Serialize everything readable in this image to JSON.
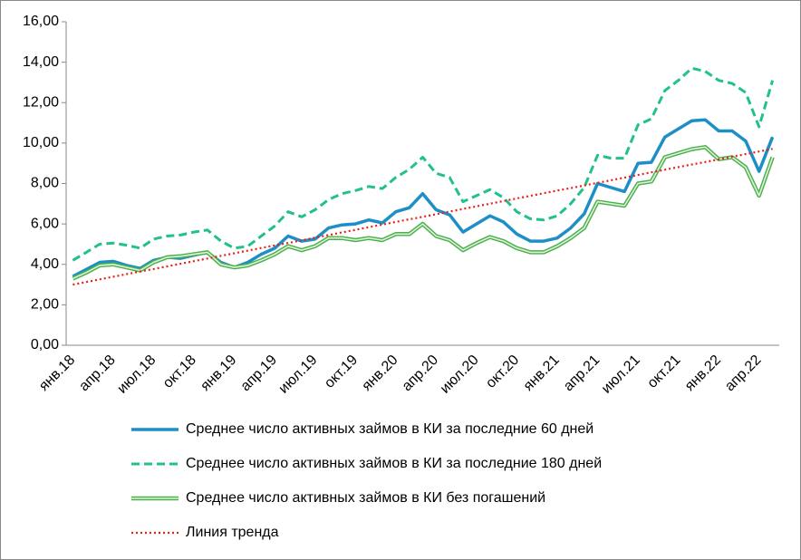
{
  "chart_data": {
    "type": "line",
    "categories": [
      "янв.18",
      null,
      null,
      "апр.18",
      null,
      null,
      "июл.18",
      null,
      null,
      "окт.18",
      null,
      null,
      "янв.19",
      null,
      null,
      "апр.19",
      null,
      null,
      "июл.19",
      null,
      null,
      "окт.19",
      null,
      null,
      "янв.20",
      null,
      null,
      "апр.20",
      null,
      null,
      "июл.20",
      null,
      null,
      "окт.20",
      null,
      null,
      "янв.21",
      null,
      null,
      "апр.21",
      null,
      null,
      "июл.21",
      null,
      null,
      "окт.21",
      null,
      null,
      "янв.22",
      null,
      null,
      "апр.22",
      null
    ],
    "series": [
      {
        "name": "Среднее число активных займов в КИ за последние 60 дней",
        "color": "#1e8fc6",
        "style": "solid",
        "values": [
          3.4,
          3.75,
          4.1,
          4.15,
          3.95,
          3.8,
          4.2,
          4.35,
          4.3,
          4.45,
          4.6,
          4.1,
          3.85,
          4.1,
          4.5,
          4.8,
          5.4,
          5.15,
          5.25,
          5.8,
          5.95,
          6.0,
          6.2,
          6.05,
          6.6,
          6.8,
          7.5,
          6.7,
          6.45,
          5.6,
          6.0,
          6.4,
          6.1,
          5.5,
          5.15,
          5.15,
          5.3,
          5.8,
          6.5,
          8.0,
          7.8,
          7.6,
          9.0,
          9.05,
          10.3,
          10.7,
          11.1,
          11.15,
          10.6,
          10.6,
          10.1,
          8.6,
          10.3
        ]
      },
      {
        "name": "Среднее число активных займов в КИ за последние 180 дней",
        "color": "#22c08c",
        "style": "dashed",
        "values": [
          4.2,
          4.6,
          5.0,
          5.05,
          4.95,
          4.8,
          5.25,
          5.4,
          5.45,
          5.6,
          5.7,
          5.15,
          4.8,
          4.9,
          5.4,
          5.9,
          6.6,
          6.35,
          6.7,
          7.2,
          7.5,
          7.65,
          7.85,
          7.75,
          8.3,
          8.7,
          9.3,
          8.5,
          8.3,
          7.1,
          7.4,
          7.7,
          7.3,
          6.6,
          6.25,
          6.2,
          6.4,
          7.0,
          7.8,
          9.4,
          9.25,
          9.25,
          10.9,
          11.2,
          12.6,
          13.1,
          13.7,
          13.55,
          13.1,
          12.95,
          12.5,
          10.8,
          13.1
        ]
      },
      {
        "name": "Среднее число активных займов в КИ без погашений",
        "color": "#4caf50",
        "style": "double",
        "values": [
          3.3,
          3.6,
          3.95,
          4.0,
          3.85,
          3.7,
          4.1,
          4.35,
          4.4,
          4.5,
          4.6,
          4.0,
          3.85,
          3.95,
          4.2,
          4.5,
          4.9,
          4.7,
          4.9,
          5.3,
          5.3,
          5.2,
          5.3,
          5.2,
          5.5,
          5.5,
          6.0,
          5.4,
          5.2,
          4.7,
          5.05,
          5.35,
          5.15,
          4.8,
          4.6,
          4.6,
          4.9,
          5.3,
          5.8,
          7.1,
          7.0,
          6.9,
          8.0,
          8.1,
          9.3,
          9.5,
          9.7,
          9.8,
          9.2,
          9.3,
          8.8,
          7.4,
          9.3
        ]
      },
      {
        "name": "Линия тренда",
        "color": "#e8201a",
        "style": "dotted",
        "values": [
          3.0,
          3.13,
          3.26,
          3.39,
          3.52,
          3.65,
          3.77,
          3.9,
          4.03,
          4.16,
          4.29,
          4.42,
          4.55,
          4.68,
          4.81,
          4.94,
          5.06,
          5.19,
          5.32,
          5.45,
          5.58,
          5.71,
          5.84,
          5.97,
          6.1,
          6.23,
          6.35,
          6.48,
          6.61,
          6.74,
          6.87,
          7.0,
          7.13,
          7.26,
          7.39,
          7.52,
          7.65,
          7.77,
          7.9,
          8.03,
          8.16,
          8.29,
          8.42,
          8.55,
          8.68,
          8.81,
          8.94,
          9.06,
          9.19,
          9.32,
          9.45,
          9.58,
          9.71
        ]
      }
    ],
    "ylim": [
      0,
      16
    ],
    "yticks": [
      {
        "value": 0,
        "label": "0,00"
      },
      {
        "value": 2,
        "label": "2,00"
      },
      {
        "value": 4,
        "label": "4,00"
      },
      {
        "value": 6,
        "label": "6,00"
      },
      {
        "value": 8,
        "label": "8,00"
      },
      {
        "value": 10,
        "label": "10,00"
      },
      {
        "value": 12,
        "label": "12,00"
      },
      {
        "value": 14,
        "label": "14,00"
      },
      {
        "value": 16,
        "label": "16,00"
      }
    ],
    "grid": false,
    "legend": "bottom"
  }
}
